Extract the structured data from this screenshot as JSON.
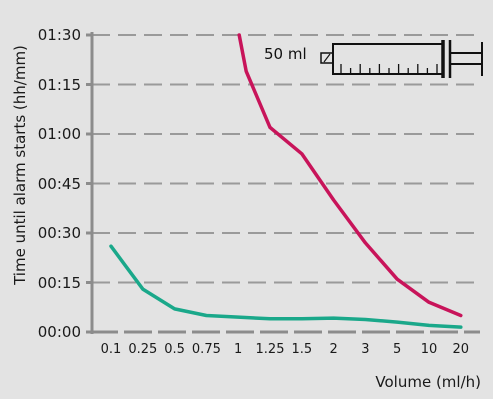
{
  "chart_data": {
    "type": "line",
    "ylabel": "Time until alarm starts (hh/mm)",
    "xlabel": "Volume (ml/h)",
    "categories": [
      "0.1",
      "0.25",
      "0.5",
      "0.75",
      "1",
      "1.25",
      "1.5",
      "2",
      "3",
      "5",
      "10",
      "20"
    ],
    "y_ticks": [
      "00:00",
      "00:15",
      "00:30",
      "00:45",
      "01:00",
      "01:15",
      "01:30"
    ],
    "ylim_minutes": [
      0,
      90
    ],
    "grid": "horizontal-dashed",
    "annotation": "50 ml",
    "series": [
      {
        "color": "#c8145a",
        "points": [
          {
            "x": "1",
            "y_minutes": 90
          },
          {
            "x": "1",
            "y_minutes": 79
          },
          {
            "x": "1.25",
            "y_minutes": 62
          },
          {
            "x": "1.5",
            "y_minutes": 54
          },
          {
            "x": "2",
            "y_minutes": 40
          },
          {
            "x": "3",
            "y_minutes": 27
          },
          {
            "x": "5",
            "y_minutes": 16
          },
          {
            "x": "10",
            "y_minutes": 9
          },
          {
            "x": "20",
            "y_minutes": 5
          }
        ]
      },
      {
        "color": "#1aa88a",
        "points": [
          {
            "x": "0.1",
            "y_minutes": 26
          },
          {
            "x": "0.25",
            "y_minutes": 13
          },
          {
            "x": "0.5",
            "y_minutes": 7
          },
          {
            "x": "0.75",
            "y_minutes": 5
          },
          {
            "x": "1",
            "y_minutes": 4.5
          },
          {
            "x": "1.25",
            "y_minutes": 4
          },
          {
            "x": "1.5",
            "y_minutes": 4
          },
          {
            "x": "2",
            "y_minutes": 4.2
          },
          {
            "x": "3",
            "y_minutes": 3.8
          },
          {
            "x": "5",
            "y_minutes": 3
          },
          {
            "x": "10",
            "y_minutes": 2
          },
          {
            "x": "20",
            "y_minutes": 1.5
          }
        ]
      }
    ]
  },
  "colors": {
    "background": "#e3e3e3",
    "axis": "#8c8c8c",
    "grid": "#9a9a9a",
    "syringe": "#111111"
  }
}
